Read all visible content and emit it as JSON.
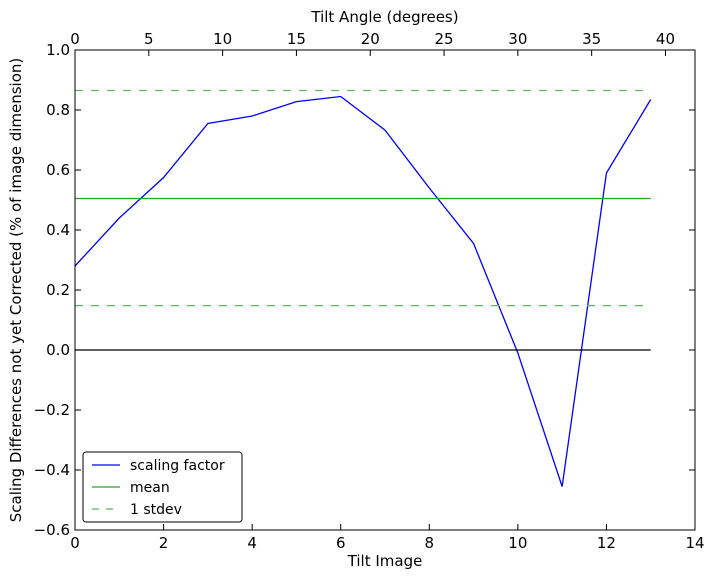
{
  "chart_data": {
    "type": "line",
    "xlabel": "Tilt Image",
    "ylabel": "Scaling Differences not yet Corrected (% of image dimension)",
    "x2label": "Tilt Angle (degrees)",
    "xlim": [
      0,
      14
    ],
    "ylim": [
      -0.6,
      1.0
    ],
    "x2lim": [
      0,
      42
    ],
    "xticks": [
      0,
      2,
      4,
      6,
      8,
      10,
      12,
      14
    ],
    "yticks": [
      -0.6,
      -0.4,
      -0.2,
      0.0,
      0.2,
      0.4,
      0.6,
      0.8,
      1.0
    ],
    "x2ticks": [
      0,
      5,
      10,
      15,
      20,
      25,
      30,
      35,
      40
    ],
    "xtick_labels": [
      "0",
      "2",
      "4",
      "6",
      "8",
      "10",
      "12",
      "14"
    ],
    "ytick_labels": [
      "−0.6",
      "−0.4",
      "−0.2",
      "0.0",
      "0.2",
      "0.4",
      "0.6",
      "0.8",
      "1.0"
    ],
    "x2tick_labels": [
      "0",
      "5",
      "10",
      "15",
      "20",
      "25",
      "30",
      "35",
      "40"
    ],
    "grid": false,
    "legend_position": "bottom-left",
    "series": [
      {
        "name": "scaling factor",
        "color": "#0000ff",
        "style": "solid",
        "x": [
          0,
          1,
          2,
          3,
          4,
          5,
          6,
          7,
          8,
          9,
          10,
          11,
          12,
          13
        ],
        "y": [
          0.28,
          0.44,
          0.575,
          0.755,
          0.78,
          0.828,
          0.845,
          0.733,
          0.54,
          0.355,
          -0.01,
          -0.455,
          0.59,
          0.835
        ]
      },
      {
        "name": "mean",
        "color": "#2ca02c",
        "style": "solid",
        "x": [
          0,
          13
        ],
        "y": [
          0.505,
          0.505
        ]
      },
      {
        "name": "1 stdev",
        "color": "#5cb85c",
        "style": "dashed",
        "x": [
          0,
          13
        ],
        "y": [
          0.865,
          0.865
        ]
      },
      {
        "name": "",
        "color": "#5cb85c",
        "style": "dashed",
        "x": [
          0,
          13
        ],
        "y": [
          0.148,
          0.148
        ]
      },
      {
        "name": "",
        "color": "#000000",
        "style": "solid",
        "x": [
          0,
          13
        ],
        "y": [
          0.0,
          0.0
        ]
      }
    ]
  }
}
